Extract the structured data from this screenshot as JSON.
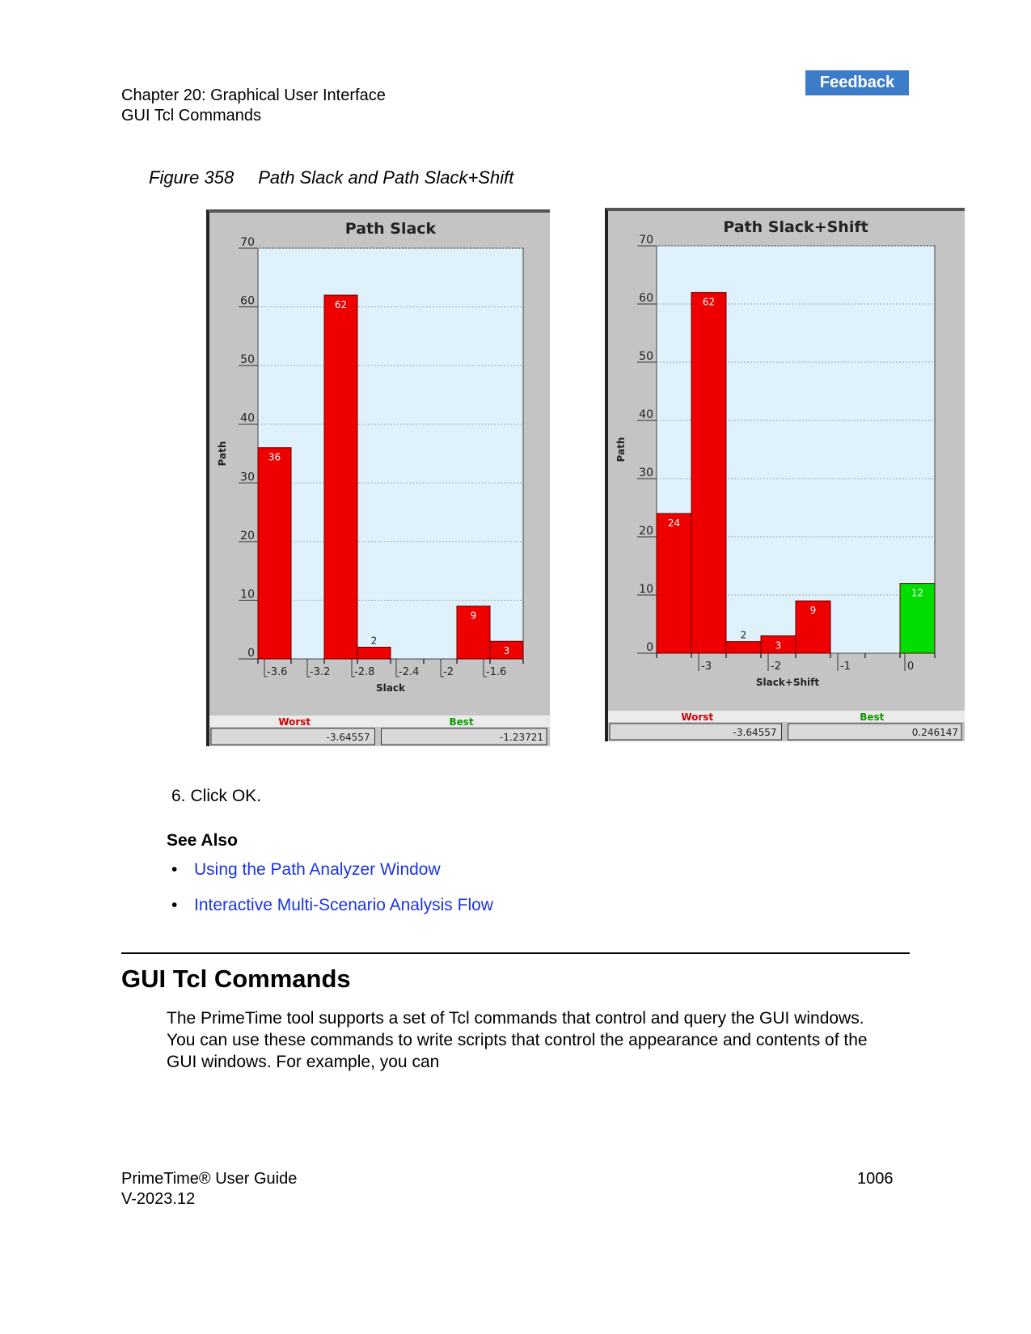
{
  "header": {
    "chapter": "Chapter 20: Graphical User Interface",
    "section": "GUI Tcl Commands",
    "feedback_label": "Feedback"
  },
  "figure": {
    "number": "Figure 358",
    "caption": "Path Slack and Path Slack+Shift"
  },
  "chart_data": [
    {
      "type": "bar",
      "title": "Path Slack",
      "xlabel": "Slack",
      "ylabel": "Path",
      "ylim": [
        0,
        70
      ],
      "yticks": [
        0,
        10,
        20,
        30,
        40,
        50,
        60,
        70
      ],
      "xtick_labels": [
        "-3.6",
        "-3.2",
        "-2.8",
        "-2.4",
        "-2",
        "-1.6"
      ],
      "bars": [
        {
          "value": 36,
          "color": "#ee0000"
        },
        {
          "value": 0,
          "color": "#ee0000"
        },
        {
          "value": 62,
          "color": "#ee0000"
        },
        {
          "value": 2,
          "color": "#ee0000"
        },
        {
          "value": 0,
          "color": "#ee0000"
        },
        {
          "value": 0,
          "color": "#ee0000"
        },
        {
          "value": 9,
          "color": "#ee0000"
        },
        {
          "value": 3,
          "color": "#ee0000"
        }
      ],
      "grid": true,
      "footer": {
        "worst_label": "Worst",
        "best_label": "Best",
        "worst_value": "-3.64557",
        "best_value": "-1.23721"
      }
    },
    {
      "type": "bar",
      "title": "Path Slack+Shift",
      "xlabel": "Slack+Shift",
      "ylabel": "Path",
      "ylim": [
        0,
        70
      ],
      "yticks": [
        0,
        10,
        20,
        30,
        40,
        50,
        60,
        70
      ],
      "xtick_labels": [
        "-3",
        "-2",
        "-1",
        "0"
      ],
      "bars": [
        {
          "value": 24,
          "color": "#ee0000"
        },
        {
          "value": 62,
          "color": "#ee0000"
        },
        {
          "value": 2,
          "color": "#ee0000"
        },
        {
          "value": 3,
          "color": "#ee0000"
        },
        {
          "value": 9,
          "color": "#ee0000"
        },
        {
          "value": 0,
          "color": "#ee0000"
        },
        {
          "value": 0,
          "color": "#ee0000"
        },
        {
          "value": 12,
          "color": "#00dd00"
        }
      ],
      "grid": true,
      "footer": {
        "worst_label": "Worst",
        "best_label": "Best",
        "worst_value": "-3.64557",
        "best_value": "0.246147"
      }
    }
  ],
  "body": {
    "step_number": "6.",
    "step_text": "Click OK.",
    "see_also_title": "See Also",
    "links": [
      "Using the Path Analyzer Window",
      "Interactive Multi-Scenario Analysis Flow"
    ],
    "bullet_char": "•",
    "section_heading": "GUI Tcl Commands",
    "paragraph": "The PrimeTime tool supports a set of Tcl commands that control and query the GUI windows. You can use these commands to write scripts that control the appearance and contents of the GUI windows. For example, you can"
  },
  "footer": {
    "product": "PrimeTime® User Guide",
    "version": "V-2023.12",
    "page_number": "1006"
  }
}
